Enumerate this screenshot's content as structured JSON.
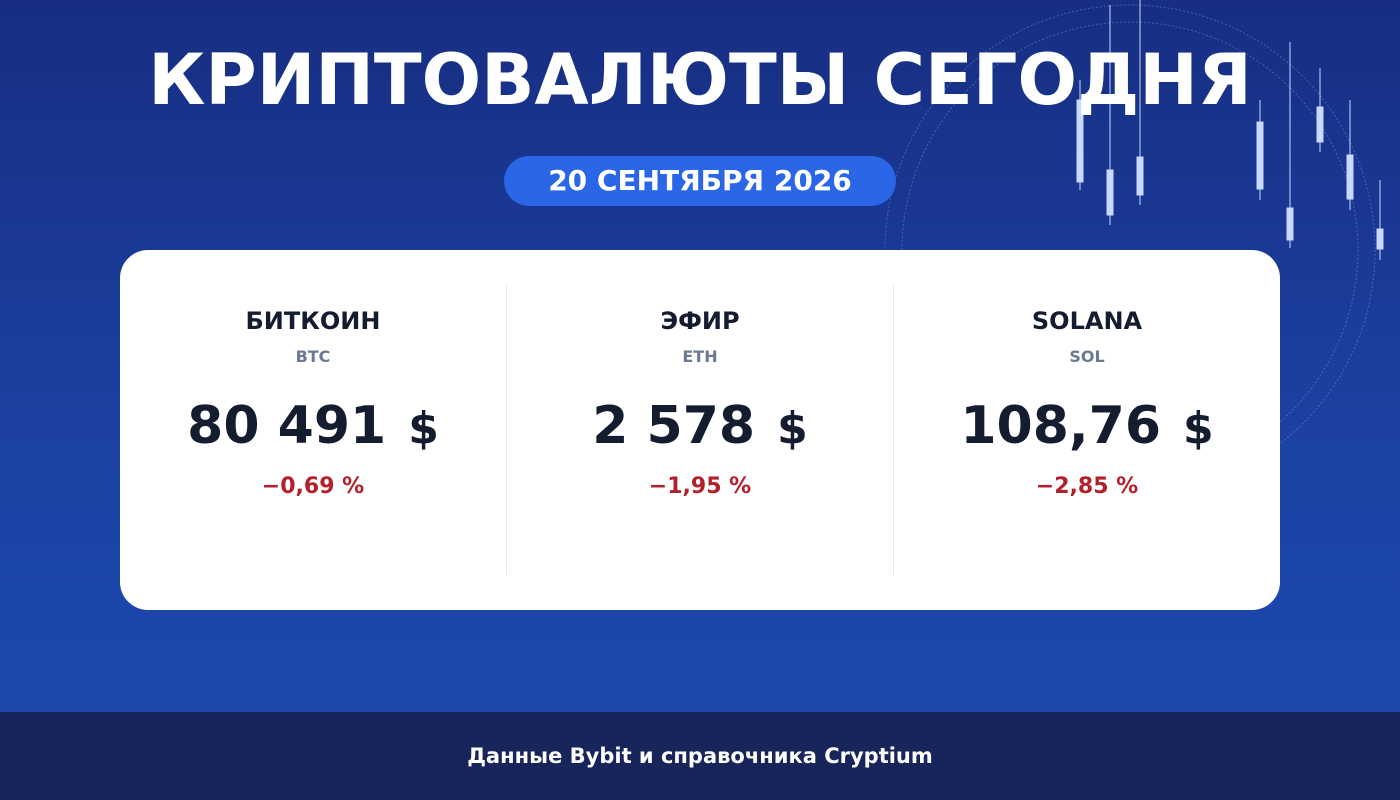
{
  "header": {
    "title": "КРИПТОВАЛЮТЫ СЕГОДНЯ",
    "date": "20 СЕНТЯБРЯ 2026"
  },
  "coins": [
    {
      "name": "БИТКОИН",
      "ticker": "BTC",
      "price": "80 491",
      "currency": "$",
      "change": "−0,69 %"
    },
    {
      "name": "ЭФИР",
      "ticker": "ETH",
      "price": "2 578",
      "currency": "$",
      "change": "−1,95 %"
    },
    {
      "name": "SOLANA",
      "ticker": "SOL",
      "price": "108,76",
      "currency": "$",
      "change": "−2,85 %"
    }
  ],
  "footer": {
    "source": "Данные Bybit и справочника Cryptium"
  }
}
